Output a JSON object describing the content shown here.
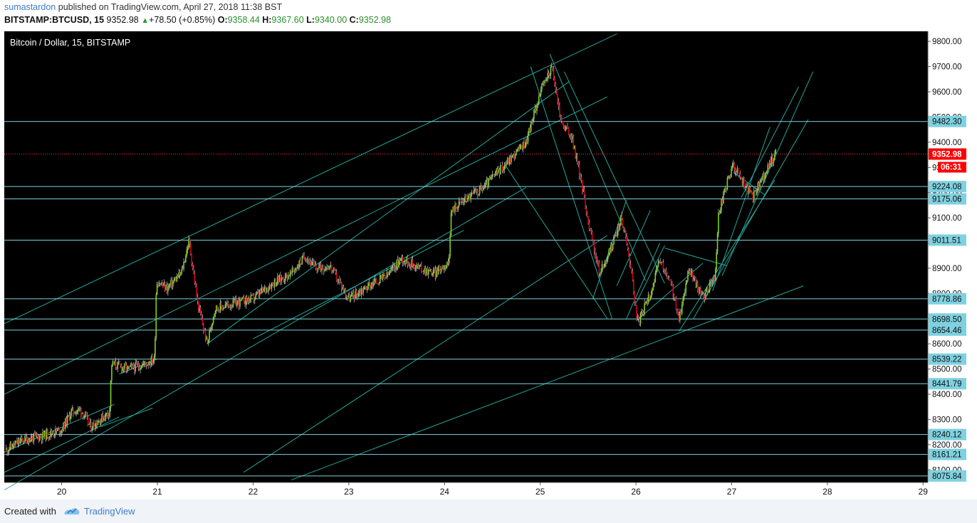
{
  "header": {
    "author": "sumastardon",
    "published_text": "published on TradingView.com, April 27, 2018 11:38 BST",
    "symbol": "BITSTAMP:BTCUSD, 15",
    "last": "9352.98",
    "change": "+78.50 (+0.85%)",
    "open_label": "O:",
    "open": "9358.44",
    "high_label": "H:",
    "high": "9367.60",
    "low_label": "L:",
    "low": "9340.00",
    "close_label": "C:",
    "close": "9352.98"
  },
  "footer": {
    "created_with": "Created with",
    "brand": "TradingView"
  },
  "colors": {
    "background": "#000000",
    "trendline": "#26a69a",
    "level_line": "#7fd1e0",
    "label_bg": "#7fd1e0",
    "price_label_bg": "#ff0000",
    "candle_up": "#7ed321",
    "candle_down": "#d0021b"
  },
  "chart_data": {
    "type": "candlestick",
    "title": "Bitcoin / Dollar, 15, BITSTAMP",
    "x_ticks": [
      "20",
      "21",
      "22",
      "23",
      "24",
      "25",
      "26",
      "27",
      "28",
      "29"
    ],
    "x_range": [
      19.4,
      29.05
    ],
    "y_range": [
      8050,
      9840
    ],
    "y_ticks": [
      8100,
      8200,
      8300,
      8400,
      8500,
      8600,
      8700,
      8800,
      8900,
      9000,
      9100,
      9200,
      9300,
      9400,
      9500,
      9600,
      9700,
      9800
    ],
    "levels": [
      9482.3,
      9224.08,
      9175.06,
      9011.51,
      8778.86,
      8698.5,
      8654.46,
      8539.22,
      8441.79,
      8240.12,
      8161.21,
      8075.84
    ],
    "current_price": "9352.98",
    "countdown": "06:31",
    "price_path": [
      [
        19.42,
        8180
      ],
      [
        19.6,
        8220
      ],
      [
        19.8,
        8235
      ],
      [
        20.0,
        8260
      ],
      [
        20.1,
        8330
      ],
      [
        20.2,
        8340
      ],
      [
        20.3,
        8270
      ],
      [
        20.4,
        8300
      ],
      [
        20.5,
        8330
      ],
      [
        20.52,
        8520
      ],
      [
        20.7,
        8500
      ],
      [
        20.9,
        8525
      ],
      [
        20.97,
        8540
      ],
      [
        20.99,
        8850
      ],
      [
        21.1,
        8820
      ],
      [
        21.25,
        8880
      ],
      [
        21.33,
        9010
      ],
      [
        21.42,
        8760
      ],
      [
        21.52,
        8600
      ],
      [
        21.6,
        8740
      ],
      [
        21.8,
        8760
      ],
      [
        22.0,
        8780
      ],
      [
        22.2,
        8840
      ],
      [
        22.4,
        8880
      ],
      [
        22.55,
        8950
      ],
      [
        22.65,
        8900
      ],
      [
        22.8,
        8910
      ],
      [
        23.0,
        8780
      ],
      [
        23.2,
        8830
      ],
      [
        23.4,
        8870
      ],
      [
        23.55,
        8940
      ],
      [
        23.75,
        8900
      ],
      [
        23.9,
        8880
      ],
      [
        24.05,
        8930
      ],
      [
        24.07,
        9130
      ],
      [
        24.2,
        9170
      ],
      [
        24.4,
        9220
      ],
      [
        24.6,
        9300
      ],
      [
        24.85,
        9400
      ],
      [
        25.0,
        9600
      ],
      [
        25.12,
        9700
      ],
      [
        25.22,
        9480
      ],
      [
        25.33,
        9420
      ],
      [
        25.43,
        9240
      ],
      [
        25.52,
        9050
      ],
      [
        25.62,
        8880
      ],
      [
        25.72,
        8960
      ],
      [
        25.85,
        9100
      ],
      [
        25.93,
        8950
      ],
      [
        26.02,
        8680
      ],
      [
        26.15,
        8800
      ],
      [
        26.25,
        8930
      ],
      [
        26.38,
        8820
      ],
      [
        26.45,
        8690
      ],
      [
        26.55,
        8900
      ],
      [
        26.7,
        8780
      ],
      [
        26.83,
        8870
      ],
      [
        26.86,
        9110
      ],
      [
        26.96,
        9250
      ],
      [
        27.02,
        9310
      ],
      [
        27.12,
        9240
      ],
      [
        27.22,
        9180
      ],
      [
        27.3,
        9240
      ],
      [
        27.38,
        9300
      ],
      [
        27.46,
        9360
      ]
    ]
  }
}
